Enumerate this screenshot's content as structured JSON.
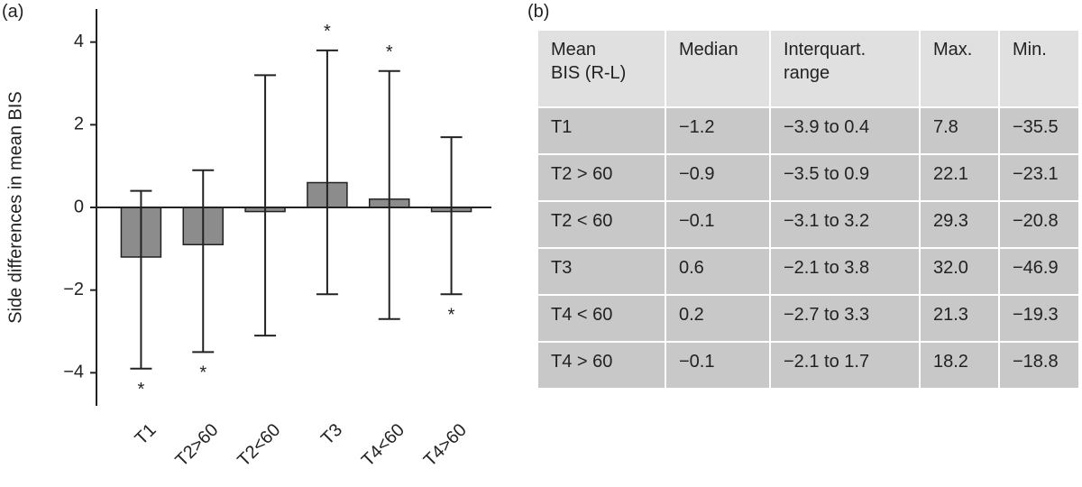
{
  "panel_a_label": "(a)",
  "panel_b_label": "(b)",
  "chart_data": {
    "type": "bar",
    "y_label": "Side differences in mean BIS",
    "categories": [
      "T1",
      "T2>60",
      "T2<60",
      "T3",
      "T4<60",
      "T4>60"
    ],
    "values": [
      -1.2,
      -0.9,
      -0.1,
      0.6,
      0.2,
      -0.1
    ],
    "error_low": [
      -3.9,
      -3.5,
      -3.1,
      -2.1,
      -2.7,
      -2.1
    ],
    "error_high": [
      0.4,
      0.9,
      3.2,
      3.8,
      3.3,
      1.7
    ],
    "color": "#8c8c8c",
    "ylim": [
      -4.8,
      4.8
    ],
    "yticks": [
      {
        "value": -4,
        "label": "−4"
      },
      {
        "value": -2,
        "label": "−2"
      },
      0,
      2,
      4
    ],
    "grid": false,
    "annotations": [
      {
        "category": "T1",
        "text": "*",
        "at": "low"
      },
      {
        "category": "T2>60",
        "text": "*",
        "at": "low"
      },
      {
        "category": "T3",
        "text": "*",
        "at": "high"
      },
      {
        "category": "T4<60",
        "text": "*",
        "at": "high"
      },
      {
        "category": "T4>60",
        "text": "*",
        "at": "low"
      }
    ]
  },
  "table": {
    "header": [
      [
        "Mean",
        "BIS (R-L)"
      ],
      [
        "Median"
      ],
      [
        "Interquart.",
        "range"
      ],
      [
        "Max."
      ],
      [
        "Min."
      ]
    ],
    "rows": [
      [
        "T1",
        "−1.2",
        "−3.9 to 0.4",
        "7.8",
        "−35.5"
      ],
      [
        "T2 > 60",
        "−0.9",
        "−3.5 to 0.9",
        "22.1",
        "−23.1"
      ],
      [
        "T2 < 60",
        "−0.1",
        "−3.1 to 3.2",
        "29.3",
        "−20.8"
      ],
      [
        "T3",
        "0.6",
        "−2.1 to 3.8",
        "32.0",
        "−46.9"
      ],
      [
        "T4 < 60",
        "0.2",
        "−2.7 to 3.3",
        "21.3",
        "−19.3"
      ],
      [
        "T4 > 60",
        "−0.1",
        "−2.1 to 1.7",
        "18.2",
        "−18.8"
      ]
    ]
  }
}
